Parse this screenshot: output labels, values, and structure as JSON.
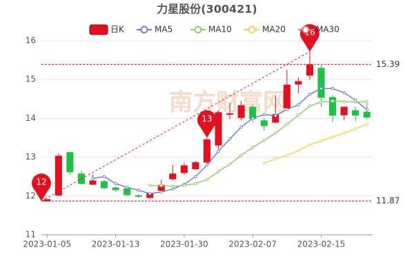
{
  "chart_data": {
    "type": "candlestick",
    "title": "力星股份(300421)",
    "categories": [
      "2023-01-05",
      null,
      null,
      null,
      null,
      null,
      "2023-01-13",
      null,
      null,
      null,
      null,
      null,
      "2023-01-30",
      null,
      null,
      null,
      null,
      null,
      "2023-02-07",
      null,
      null,
      null,
      null,
      null,
      "2023-02-15",
      null,
      null,
      null,
      null
    ],
    "candles": {
      "name": "日K",
      "up_color": "#e3101e",
      "down_color": "#1ec247",
      "open": [
        11.87,
        12.02,
        13.12,
        12.57,
        12.3,
        12.37,
        12.21,
        12.19,
        12.01,
        11.96,
        12.14,
        12.44,
        12.6,
        12.7,
        12.87,
        13.31,
        14.1,
        14.02,
        14.29,
        13.94,
        13.9,
        14.27,
        14.88,
        15.11,
        15.29,
        14.54,
        14.09,
        14.2,
        14.16
      ],
      "high": [
        11.92,
        13.1,
        13.13,
        12.65,
        12.55,
        12.42,
        12.24,
        12.22,
        12.05,
        12.1,
        12.42,
        12.8,
        12.85,
        12.9,
        13.5,
        14.2,
        14.4,
        14.45,
        14.35,
        14.0,
        14.6,
        15.25,
        15.05,
        15.72,
        15.39,
        14.6,
        14.3,
        14.3,
        14.4
      ],
      "low": [
        11.87,
        12.0,
        12.55,
        12.3,
        12.28,
        12.18,
        12.12,
        12.0,
        11.95,
        11.92,
        12.1,
        12.4,
        12.55,
        12.68,
        12.8,
        13.2,
        13.98,
        13.95,
        13.9,
        13.68,
        13.88,
        14.2,
        14.65,
        15.0,
        14.3,
        13.9,
        13.95,
        13.92,
        13.98
      ],
      "close": [
        11.91,
        13.03,
        12.62,
        12.32,
        12.39,
        12.21,
        12.16,
        12.03,
        11.99,
        12.06,
        12.28,
        12.57,
        12.78,
        12.86,
        13.45,
        14.15,
        14.12,
        14.33,
        13.99,
        13.81,
        14.1,
        14.86,
        14.95,
        15.38,
        14.54,
        14.08,
        14.29,
        14.08,
        14.03
      ]
    },
    "series": [
      {
        "name": "MA5",
        "color": "#6b84c9",
        "values": [
          null,
          null,
          null,
          null,
          12.45,
          12.5,
          12.32,
          12.22,
          12.15,
          12.06,
          12.1,
          12.18,
          12.3,
          12.5,
          12.8,
          13.15,
          13.47,
          13.78,
          14.0,
          14.1,
          14.07,
          14.23,
          14.35,
          14.62,
          14.77,
          14.77,
          14.66,
          14.47,
          14.22
        ]
      },
      {
        "name": "MA10",
        "color": "#90cc6e",
        "values": [
          null,
          null,
          null,
          null,
          null,
          null,
          null,
          null,
          null,
          12.27,
          12.27,
          12.25,
          12.27,
          12.32,
          12.42,
          12.63,
          12.82,
          13.05,
          13.25,
          13.43,
          13.62,
          13.85,
          14.08,
          14.32,
          14.42,
          14.45,
          14.43,
          14.42,
          14.43
        ]
      },
      {
        "name": "MA20",
        "color": "#f5d15a",
        "values": [
          null,
          null,
          null,
          null,
          null,
          null,
          null,
          null,
          null,
          null,
          null,
          null,
          null,
          null,
          null,
          null,
          null,
          null,
          null,
          12.85,
          12.95,
          13.05,
          13.17,
          13.32,
          13.42,
          13.52,
          13.62,
          13.73,
          13.85
        ]
      },
      {
        "name": "MA30",
        "color": "#e87876",
        "values": [
          null,
          null,
          null,
          null,
          null,
          null,
          null,
          null,
          null,
          null,
          null,
          null,
          null,
          null,
          null,
          null,
          null,
          null,
          null,
          null,
          null,
          null,
          null,
          null,
          null,
          null,
          null,
          null,
          null
        ]
      }
    ],
    "markers": [
      {
        "label": "12",
        "x": "2023-01-05",
        "value": 11.87
      },
      {
        "label": "13",
        "x": "2023-02-03",
        "value": 13.5
      },
      {
        "label": "16",
        "x": "2023-02-15",
        "value": 15.72
      }
    ],
    "hlines": [
      15.39,
      11.87
    ],
    "watermark": "南方财富网",
    "ylim": [
      11,
      16
    ],
    "yticks": [
      11,
      12,
      13,
      14,
      15,
      16
    ],
    "grid": true
  }
}
